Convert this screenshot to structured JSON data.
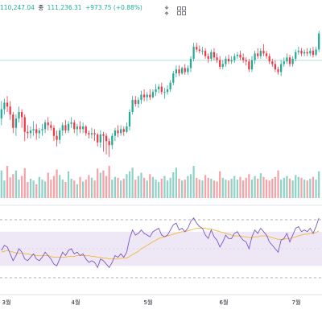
{
  "legend": {
    "low_value": "110,247.04",
    "close_label": "종",
    "close_value": "111,236.31",
    "change": "+973.75 (+0.88%)"
  },
  "toolbar": {
    "icons": [
      "arrows-compress-icon",
      "grid-icon"
    ]
  },
  "colors": {
    "up": "#22ab94",
    "down": "#f23645",
    "vol_up": "#8fd3c6",
    "vol_down": "#f5a3a8",
    "rsi_line": "#7e57c2",
    "rsi_ma": "#f5b73b",
    "rsi_band": "#ede7f6",
    "hline": "#b2dfdb"
  },
  "x_axis": {
    "labels": [
      "3월",
      "4월",
      "5월",
      "6월",
      "7월"
    ]
  },
  "chart_data": {
    "type": "candlestick",
    "y_range": [
      0,
      100
    ],
    "candles": [
      [
        35,
        42,
        48,
        30
      ],
      [
        42,
        47,
        50,
        38
      ],
      [
        47,
        44,
        52,
        40
      ],
      [
        44,
        38,
        48,
        34
      ],
      [
        38,
        28,
        40,
        24
      ],
      [
        28,
        35,
        38,
        22
      ],
      [
        35,
        40,
        44,
        32
      ],
      [
        40,
        36,
        42,
        28
      ],
      [
        36,
        25,
        38,
        18
      ],
      [
        25,
        24,
        30,
        20
      ],
      [
        24,
        26,
        29,
        20
      ],
      [
        26,
        27,
        33,
        22
      ],
      [
        27,
        24,
        31,
        19
      ],
      [
        24,
        26,
        28,
        20
      ],
      [
        26,
        27,
        31,
        22
      ],
      [
        27,
        32,
        34,
        24
      ],
      [
        32,
        30,
        36,
        26
      ],
      [
        30,
        28,
        33,
        26
      ],
      [
        28,
        22,
        30,
        18
      ],
      [
        22,
        19,
        26,
        14
      ],
      [
        19,
        26,
        28,
        16
      ],
      [
        26,
        30,
        32,
        22
      ],
      [
        30,
        26,
        34,
        24
      ],
      [
        26,
        31,
        33,
        24
      ],
      [
        31,
        32,
        36,
        28
      ],
      [
        32,
        27,
        34,
        24
      ],
      [
        27,
        29,
        31,
        22
      ],
      [
        29,
        27,
        33,
        24
      ],
      [
        27,
        29,
        32,
        24
      ],
      [
        29,
        24,
        30,
        22
      ],
      [
        24,
        23,
        26,
        20
      ],
      [
        23,
        24,
        28,
        20
      ],
      [
        24,
        23,
        27,
        18
      ],
      [
        23,
        17,
        24,
        14
      ],
      [
        17,
        23,
        26,
        13
      ],
      [
        23,
        22,
        25,
        10
      ],
      [
        22,
        18,
        24,
        8
      ],
      [
        18,
        15,
        20,
        6
      ],
      [
        15,
        22,
        24,
        12
      ],
      [
        22,
        26,
        28,
        18
      ],
      [
        26,
        24,
        30,
        21
      ],
      [
        24,
        27,
        30,
        22
      ],
      [
        27,
        25,
        29,
        22
      ],
      [
        25,
        29,
        32,
        24
      ],
      [
        29,
        40,
        42,
        26
      ],
      [
        40,
        49,
        52,
        38
      ],
      [
        49,
        46,
        52,
        44
      ],
      [
        46,
        49,
        51,
        43
      ],
      [
        49,
        53,
        56,
        46
      ],
      [
        53,
        51,
        57,
        48
      ],
      [
        51,
        53,
        55,
        48
      ],
      [
        53,
        51,
        57,
        49
      ],
      [
        51,
        55,
        57,
        50
      ],
      [
        55,
        57,
        61,
        52
      ],
      [
        57,
        59,
        61,
        54
      ],
      [
        59,
        55,
        62,
        53
      ],
      [
        55,
        55,
        58,
        50
      ],
      [
        55,
        57,
        60,
        53
      ],
      [
        57,
        62,
        64,
        55
      ],
      [
        62,
        69,
        71,
        60
      ],
      [
        69,
        72,
        75,
        66
      ],
      [
        72,
        69,
        75,
        67
      ],
      [
        69,
        73,
        74,
        68
      ],
      [
        73,
        70,
        76,
        68
      ],
      [
        70,
        73,
        75,
        68
      ],
      [
        73,
        80,
        82,
        70
      ],
      [
        80,
        89,
        92,
        78
      ],
      [
        89,
        87,
        92,
        85
      ],
      [
        87,
        86,
        90,
        84
      ],
      [
        86,
        86,
        89,
        83
      ],
      [
        86,
        82,
        88,
        80
      ],
      [
        82,
        80,
        84,
        77
      ],
      [
        80,
        85,
        87,
        78
      ],
      [
        85,
        81,
        88,
        79
      ],
      [
        81,
        79,
        84,
        77
      ],
      [
        79,
        74,
        82,
        72
      ],
      [
        74,
        76,
        79,
        72
      ],
      [
        76,
        80,
        82,
        74
      ],
      [
        80,
        78,
        83,
        76
      ],
      [
        78,
        79,
        82,
        76
      ],
      [
        79,
        82,
        84,
        77
      ],
      [
        82,
        83,
        85,
        80
      ],
      [
        83,
        81,
        86,
        79
      ],
      [
        81,
        79,
        84,
        77
      ],
      [
        79,
        78,
        81,
        75
      ],
      [
        78,
        72,
        80,
        70
      ],
      [
        72,
        79,
        82,
        70
      ],
      [
        79,
        84,
        86,
        76
      ],
      [
        84,
        82,
        88,
        80
      ],
      [
        82,
        86,
        88,
        80
      ],
      [
        86,
        84,
        91,
        82
      ],
      [
        84,
        82,
        86,
        80
      ],
      [
        82,
        78,
        84,
        76
      ],
      [
        78,
        76,
        80,
        74
      ],
      [
        76,
        72,
        79,
        70
      ],
      [
        72,
        70,
        74,
        68
      ],
      [
        70,
        76,
        79,
        67
      ],
      [
        76,
        78,
        81,
        74
      ],
      [
        78,
        81,
        84,
        76
      ],
      [
        81,
        76,
        83,
        74
      ],
      [
        76,
        80,
        82,
        74
      ],
      [
        80,
        85,
        87,
        78
      ],
      [
        85,
        86,
        89,
        83
      ],
      [
        86,
        84,
        88,
        82
      ],
      [
        84,
        85,
        87,
        82
      ],
      [
        85,
        84,
        88,
        82
      ],
      [
        84,
        86,
        88,
        82
      ],
      [
        86,
        83,
        89,
        81
      ],
      [
        83,
        87,
        89,
        82
      ],
      [
        87,
        99,
        101,
        85
      ]
    ],
    "volume": [
      60,
      38,
      70,
      45,
      52,
      60,
      40,
      48,
      65,
      35,
      42,
      38,
      30,
      46,
      40,
      36,
      55,
      40,
      48,
      62,
      50,
      40,
      35,
      58,
      42,
      38,
      30,
      46,
      36,
      40,
      50,
      44,
      38,
      64,
      55,
      60,
      48,
      70,
      40,
      46,
      44,
      38,
      42,
      52,
      58,
      66,
      40,
      48,
      55,
      44,
      38,
      52,
      46,
      40,
      35,
      42,
      48,
      38,
      44,
      56,
      66,
      42,
      38,
      40,
      48,
      52,
      70,
      44,
      40,
      38,
      50,
      44,
      42,
      38,
      36,
      58,
      44,
      40,
      38,
      42,
      48,
      40,
      46,
      38,
      44,
      52,
      40,
      48,
      42,
      54,
      46,
      40,
      38,
      42,
      46,
      60,
      40,
      44,
      48,
      42,
      38,
      50,
      46,
      44,
      40,
      38,
      42,
      46,
      40,
      58
    ],
    "rsi": [
      48,
      54,
      52,
      44,
      36,
      42,
      50,
      46,
      38,
      36,
      40,
      44,
      38,
      36,
      40,
      46,
      42,
      38,
      32,
      30,
      38,
      46,
      42,
      48,
      50,
      44,
      46,
      42,
      44,
      38,
      34,
      36,
      34,
      28,
      38,
      36,
      32,
      28,
      34,
      42,
      40,
      44,
      40,
      46,
      62,
      72,
      66,
      68,
      72,
      68,
      66,
      64,
      70,
      72,
      74,
      66,
      64,
      66,
      72,
      78,
      80,
      72,
      74,
      70,
      74,
      82,
      86,
      80,
      76,
      74,
      66,
      62,
      72,
      64,
      60,
      52,
      58,
      66,
      62,
      62,
      68,
      70,
      64,
      60,
      58,
      50,
      64,
      72,
      68,
      74,
      70,
      66,
      58,
      54,
      50,
      46,
      60,
      62,
      68,
      58,
      66,
      74,
      76,
      70,
      72,
      70,
      74,
      68,
      76,
      86
    ],
    "rsi_ma": [
      46,
      47,
      48,
      47,
      46,
      45,
      45,
      45,
      44,
      44,
      43,
      43,
      42,
      42,
      42,
      42,
      42,
      41,
      40,
      40,
      40,
      40,
      40,
      41,
      41,
      41,
      42,
      42,
      42,
      42,
      42,
      41,
      41,
      40,
      40,
      39,
      39,
      38,
      38,
      38,
      38,
      39,
      39,
      39,
      41,
      43,
      45,
      47,
      50,
      52,
      54,
      56,
      58,
      60,
      62,
      63,
      64,
      65,
      66,
      67,
      68,
      69,
      70,
      70,
      71,
      72,
      73,
      74,
      74,
      74,
      74,
      73,
      73,
      72,
      71,
      70,
      69,
      68,
      67,
      66,
      65,
      65,
      65,
      64,
      64,
      63,
      63,
      64,
      64,
      65,
      65,
      65,
      64,
      63,
      62,
      61,
      61,
      61,
      62,
      62,
      63,
      64,
      65,
      66,
      67,
      67,
      68,
      68,
      69,
      71
    ],
    "rsi_levels": [
      70,
      50,
      30
    ]
  }
}
